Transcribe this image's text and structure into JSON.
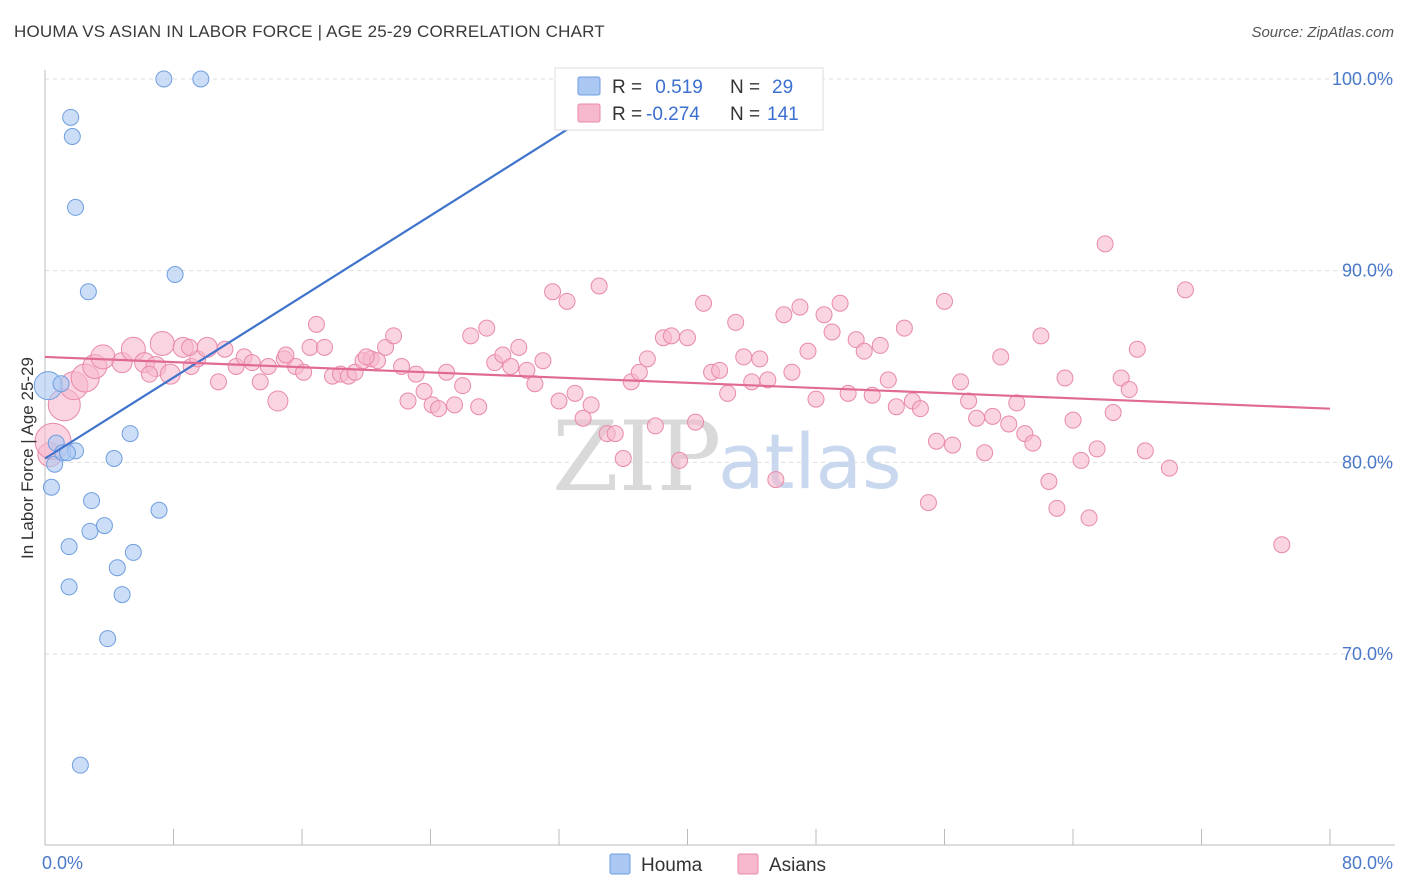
{
  "title": "HOUMA VS ASIAN IN LABOR FORCE | AGE 25-29 CORRELATION CHART",
  "source": "Source: ZipAtlas.com",
  "watermark": {
    "zip": "ZIP",
    "atlas": "atlas"
  },
  "colors": {
    "houma_fill": "#aac8f2",
    "houma_stroke": "#6f9ee0",
    "houma_line": "#3f73cc",
    "asians_fill": "#f6b8cc",
    "asians_stroke": "#e88aa8",
    "asians_line": "#e06a94",
    "grid": "#dddddd",
    "tick_label": "#4a78c8"
  },
  "legend_top": [
    {
      "r_label": "R =",
      "r_value": " 0.519",
      "n_label": "N =",
      "n_value": "29",
      "series": "houma"
    },
    {
      "r_label": "R =",
      "r_value": "-0.274",
      "n_label": "N =",
      "n_value": "141",
      "series": "asians"
    }
  ],
  "legend_bottom": [
    {
      "label": "Houma",
      "series": "houma"
    },
    {
      "label": "Asians",
      "series": "asians"
    }
  ],
  "chart_data": {
    "type": "scatter",
    "title": "HOUMA VS ASIAN IN LABOR FORCE | AGE 25-29 CORRELATION CHART",
    "xlabel": "",
    "ylabel": "In Labor Force | Age 25-29",
    "xlim": [
      0,
      80
    ],
    "ylim": [
      61,
      101
    ],
    "x_tick_labels": [
      "0.0%",
      "80.0%"
    ],
    "y_ticks": [
      70,
      80,
      90,
      100
    ],
    "y_tick_labels": [
      "70.0%",
      "80.0%",
      "90.0%",
      "100.0%"
    ],
    "grid": true,
    "legend_position": "top-center",
    "series": [
      {
        "name": "Houma",
        "r": 0.519,
        "n": 29,
        "trend": {
          "x": [
            0,
            37.5
          ],
          "y": [
            80.2,
            100.0
          ]
        },
        "points": [
          [
            0.2,
            84.0,
            14
          ],
          [
            0.7,
            81.0,
            8
          ],
          [
            0.6,
            79.9,
            8
          ],
          [
            0.4,
            78.7,
            8
          ],
          [
            1.0,
            84.1,
            8
          ],
          [
            1.1,
            80.5,
            8
          ],
          [
            1.9,
            80.6,
            8
          ],
          [
            1.5,
            75.6,
            8
          ],
          [
            1.5,
            73.5,
            8
          ],
          [
            1.6,
            98.0,
            8
          ],
          [
            1.7,
            97.0,
            8
          ],
          [
            1.9,
            93.3,
            8
          ],
          [
            2.7,
            88.9,
            8
          ],
          [
            2.9,
            78.0,
            8
          ],
          [
            2.8,
            76.4,
            8
          ],
          [
            3.7,
            76.7,
            8
          ],
          [
            3.9,
            70.8,
            8
          ],
          [
            4.3,
            80.2,
            8
          ],
          [
            4.5,
            74.5,
            8
          ],
          [
            4.8,
            73.1,
            8
          ],
          [
            5.3,
            81.5,
            8
          ],
          [
            5.5,
            75.3,
            8
          ],
          [
            7.1,
            77.5,
            8
          ],
          [
            7.4,
            100.0,
            8
          ],
          [
            8.1,
            89.8,
            8
          ],
          [
            9.7,
            100.0,
            8
          ],
          [
            44.5,
            100.0,
            8
          ],
          [
            2.2,
            64.2,
            8
          ],
          [
            1.4,
            80.5,
            8
          ]
        ]
      },
      {
        "name": "Asians",
        "r": -0.274,
        "n": 141,
        "trend": {
          "x": [
            0,
            80
          ],
          "y": [
            85.5,
            82.8
          ]
        },
        "points": [
          [
            0.3,
            80.4,
            12
          ],
          [
            0.5,
            81.1,
            18
          ],
          [
            1.2,
            83.0,
            16
          ],
          [
            1.8,
            84.0,
            14
          ],
          [
            2.5,
            84.4,
            14
          ],
          [
            3.1,
            85.0,
            12
          ],
          [
            3.6,
            85.5,
            12
          ],
          [
            4.8,
            85.2,
            10
          ],
          [
            5.5,
            85.9,
            12
          ],
          [
            6.2,
            85.2,
            10
          ],
          [
            6.9,
            85.0,
            10
          ],
          [
            7.3,
            86.2,
            12
          ],
          [
            7.8,
            84.6,
            10
          ],
          [
            8.6,
            86.0,
            10
          ],
          [
            9.1,
            85.0,
            8
          ],
          [
            9.5,
            85.4,
            8
          ],
          [
            10.1,
            86.0,
            10
          ],
          [
            10.8,
            84.2,
            8
          ],
          [
            11.2,
            85.9,
            8
          ],
          [
            11.9,
            85.0,
            8
          ],
          [
            12.4,
            85.5,
            8
          ],
          [
            12.9,
            85.2,
            8
          ],
          [
            13.4,
            84.2,
            8
          ],
          [
            13.9,
            85.0,
            8
          ],
          [
            14.5,
            83.2,
            10
          ],
          [
            14.9,
            85.4,
            8
          ],
          [
            15.6,
            85.0,
            8
          ],
          [
            16.1,
            84.7,
            8
          ],
          [
            16.5,
            86.0,
            8
          ],
          [
            16.9,
            87.2,
            8
          ],
          [
            17.4,
            86.0,
            8
          ],
          [
            17.9,
            84.5,
            8
          ],
          [
            18.4,
            84.6,
            8
          ],
          [
            18.9,
            84.5,
            8
          ],
          [
            19.3,
            84.7,
            8
          ],
          [
            19.8,
            85.3,
            8
          ],
          [
            20.3,
            85.4,
            8
          ],
          [
            20.7,
            85.3,
            8
          ],
          [
            21.2,
            86.0,
            8
          ],
          [
            21.7,
            86.6,
            8
          ],
          [
            22.2,
            85.0,
            8
          ],
          [
            22.6,
            83.2,
            8
          ],
          [
            23.1,
            84.6,
            8
          ],
          [
            23.6,
            83.7,
            8
          ],
          [
            24.1,
            83.0,
            8
          ],
          [
            24.5,
            82.8,
            8
          ],
          [
            25.0,
            84.7,
            8
          ],
          [
            25.5,
            83.0,
            8
          ],
          [
            26.0,
            84.0,
            8
          ],
          [
            26.5,
            86.6,
            8
          ],
          [
            27.0,
            82.9,
            8
          ],
          [
            27.5,
            87.0,
            8
          ],
          [
            28.0,
            85.2,
            8
          ],
          [
            28.5,
            85.6,
            8
          ],
          [
            29.0,
            85.0,
            8
          ],
          [
            29.5,
            86.0,
            8
          ],
          [
            30.0,
            84.8,
            8
          ],
          [
            30.5,
            84.1,
            8
          ],
          [
            31.0,
            85.3,
            8
          ],
          [
            31.6,
            88.9,
            8
          ],
          [
            32.0,
            83.2,
            8
          ],
          [
            32.5,
            88.4,
            8
          ],
          [
            33.0,
            83.6,
            8
          ],
          [
            33.5,
            82.3,
            8
          ],
          [
            34.0,
            83.0,
            8
          ],
          [
            34.5,
            89.2,
            8
          ],
          [
            35.0,
            81.5,
            8
          ],
          [
            35.5,
            81.5,
            8
          ],
          [
            36.0,
            80.2,
            8
          ],
          [
            36.5,
            84.2,
            8
          ],
          [
            37.0,
            84.7,
            8
          ],
          [
            37.5,
            85.4,
            8
          ],
          [
            38.0,
            81.9,
            8
          ],
          [
            38.5,
            86.5,
            8
          ],
          [
            39.0,
            86.6,
            8
          ],
          [
            39.5,
            80.1,
            8
          ],
          [
            40.0,
            86.5,
            8
          ],
          [
            40.5,
            82.1,
            8
          ],
          [
            41.0,
            88.3,
            8
          ],
          [
            41.5,
            84.7,
            8
          ],
          [
            42.0,
            84.8,
            8
          ],
          [
            42.5,
            83.6,
            8
          ],
          [
            43.0,
            87.3,
            8
          ],
          [
            43.5,
            85.5,
            8
          ],
          [
            44.0,
            84.2,
            8
          ],
          [
            44.5,
            85.4,
            8
          ],
          [
            45.0,
            84.3,
            8
          ],
          [
            45.5,
            79.1,
            8
          ],
          [
            46.0,
            87.7,
            8
          ],
          [
            46.5,
            84.7,
            8
          ],
          [
            47.0,
            88.1,
            8
          ],
          [
            47.5,
            85.8,
            8
          ],
          [
            48.0,
            83.3,
            8
          ],
          [
            48.5,
            87.7,
            8
          ],
          [
            49.0,
            86.8,
            8
          ],
          [
            49.5,
            88.3,
            8
          ],
          [
            50.0,
            83.6,
            8
          ],
          [
            50.5,
            86.4,
            8
          ],
          [
            51.0,
            85.8,
            8
          ],
          [
            51.5,
            83.5,
            8
          ],
          [
            52.0,
            86.1,
            8
          ],
          [
            52.5,
            84.3,
            8
          ],
          [
            53.0,
            82.9,
            8
          ],
          [
            53.5,
            87.0,
            8
          ],
          [
            54.0,
            83.2,
            8
          ],
          [
            54.5,
            82.8,
            8
          ],
          [
            55.0,
            77.9,
            8
          ],
          [
            55.5,
            81.1,
            8
          ],
          [
            56.0,
            88.4,
            8
          ],
          [
            56.5,
            80.9,
            8
          ],
          [
            57.0,
            84.2,
            8
          ],
          [
            57.5,
            83.2,
            8
          ],
          [
            58.0,
            82.3,
            8
          ],
          [
            58.5,
            80.5,
            8
          ],
          [
            59.0,
            82.4,
            8
          ],
          [
            59.5,
            85.5,
            8
          ],
          [
            60.0,
            82.0,
            8
          ],
          [
            60.5,
            83.1,
            8
          ],
          [
            61.0,
            81.5,
            8
          ],
          [
            61.5,
            81.0,
            8
          ],
          [
            62.0,
            86.6,
            8
          ],
          [
            62.5,
            79.0,
            8
          ],
          [
            63.0,
            77.6,
            8
          ],
          [
            63.5,
            84.4,
            8
          ],
          [
            64.0,
            82.2,
            8
          ],
          [
            64.5,
            80.1,
            8
          ],
          [
            65.0,
            77.1,
            8
          ],
          [
            65.5,
            80.7,
            8
          ],
          [
            66.0,
            91.4,
            8
          ],
          [
            66.5,
            82.6,
            8
          ],
          [
            67.0,
            84.4,
            8
          ],
          [
            67.5,
            83.8,
            8
          ],
          [
            68.0,
            85.9,
            8
          ],
          [
            68.5,
            80.6,
            8
          ],
          [
            70.0,
            79.7,
            8
          ],
          [
            71.0,
            89.0,
            8
          ],
          [
            77.0,
            75.7,
            8
          ],
          [
            20.0,
            85.5,
            8
          ],
          [
            15.0,
            85.6,
            8
          ],
          [
            9.0,
            86.0,
            8
          ],
          [
            6.5,
            84.6,
            8
          ]
        ]
      }
    ]
  }
}
